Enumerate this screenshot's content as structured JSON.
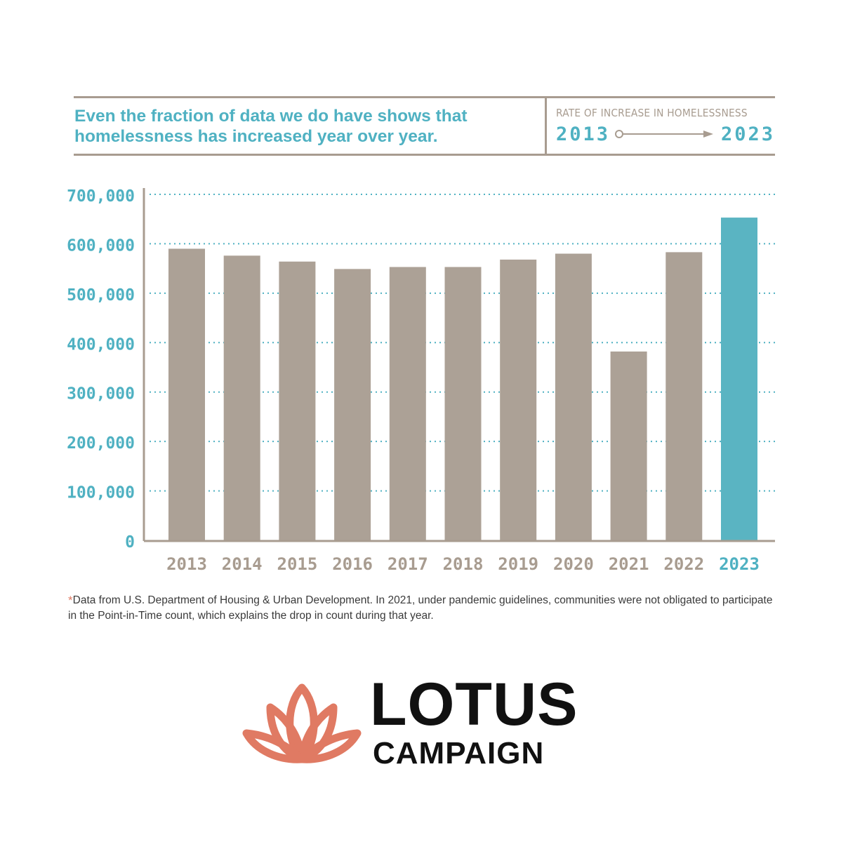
{
  "header": {
    "headline": "Even the fraction of data we do have shows that homelessness has increased year over year.",
    "rate_label": "RATE OF INCREASE IN HOMELESSNESS",
    "range_start": "2013",
    "range_end": "2023"
  },
  "chart_data": {
    "type": "bar",
    "title": "",
    "xlabel": "",
    "ylabel": "",
    "categories": [
      "2013",
      "2014",
      "2015",
      "2016",
      "2017",
      "2018",
      "2019",
      "2020",
      "2021",
      "2022",
      "2023"
    ],
    "values": [
      590000,
      576000,
      564000,
      549000,
      553000,
      553000,
      568000,
      580000,
      382000,
      583000,
      653000
    ],
    "highlight_category": "2023",
    "ylim": [
      0,
      700000
    ],
    "yticks": [
      0,
      100000,
      200000,
      300000,
      400000,
      500000,
      600000,
      700000
    ],
    "ytick_labels": [
      "0",
      "100,000",
      "200,000",
      "300,000",
      "400,000",
      "500,000",
      "600,000",
      "700,000"
    ],
    "grid": "horizontal dotted",
    "colors": {
      "bar": "#aca196",
      "highlight_bar": "#5ab4c2",
      "axis": "#a89c90",
      "grid": "#4fb1c2",
      "ytick_label": "#4fb1c2",
      "xtick_label": "#a89c90",
      "xtick_label_highlight": "#4fb1c2"
    }
  },
  "footnote": {
    "mark": "*",
    "text": "Data from U.S. Department of Housing & Urban Development. In 2021, under pandemic guidelines, communities were not obligated to participate in the Point-in-Time count, which explains the drop in count during that year."
  },
  "logo": {
    "line1": "LOTUS",
    "line2": "CAMPAIGN",
    "icon": "lotus-flower-icon",
    "icon_color": "#e07a63"
  }
}
